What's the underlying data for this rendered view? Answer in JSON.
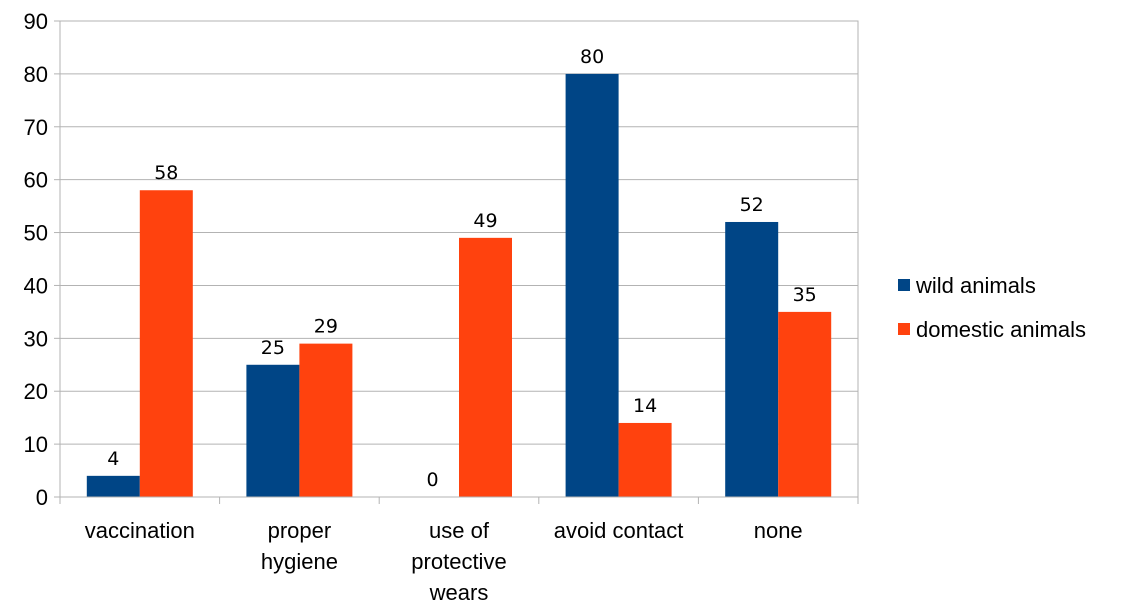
{
  "chart_data": {
    "type": "bar",
    "categories": [
      [
        "vaccination"
      ],
      [
        "proper",
        "hygiene"
      ],
      [
        "use of",
        "protective",
        "wears"
      ],
      [
        "avoid contact"
      ],
      [
        "none"
      ]
    ],
    "series": [
      {
        "name": "wild animals",
        "color": "#004586",
        "values": [
          4,
          25,
          0,
          80,
          52
        ]
      },
      {
        "name": "domestic animals",
        "color": "#ff420e",
        "values": [
          58,
          29,
          49,
          14,
          35
        ]
      }
    ],
    "ylim": [
      0,
      90
    ],
    "yticks": [
      0,
      10,
      20,
      30,
      40,
      50,
      60,
      70,
      80,
      90
    ],
    "grid": true,
    "legend": "right",
    "data_labels": true
  }
}
